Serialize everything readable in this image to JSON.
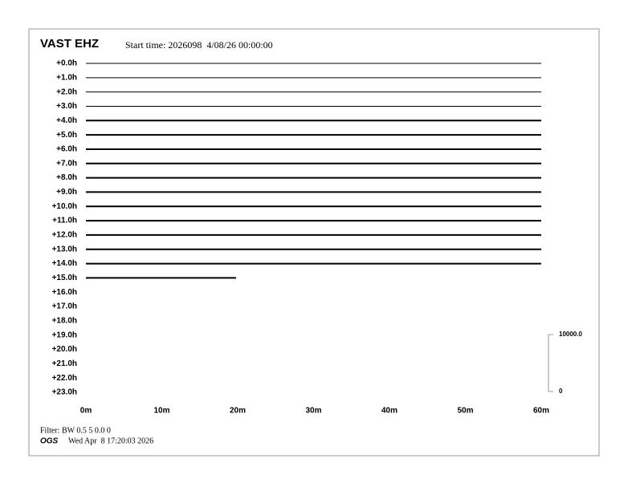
{
  "header": {
    "station": "VAST EHZ",
    "start_time": "Start time: 2026098  4/08/26 00:00:00"
  },
  "rows": [
    "+0.0h",
    "+1.0h",
    "+2.0h",
    "+3.0h",
    "+4.0h",
    "+5.0h",
    "+6.0h",
    "+7.0h",
    "+8.0h",
    "+9.0h",
    "+10.0h",
    "+11.0h",
    "+12.0h",
    "+13.0h",
    "+14.0h",
    "+15.0h",
    "+16.0h",
    "+17.0h",
    "+18.0h",
    "+19.0h",
    "+20.0h",
    "+21.0h",
    "+22.0h",
    "+23.0h"
  ],
  "x_labels": [
    "0m",
    "10m",
    "20m",
    "30m",
    "40m",
    "50m",
    "60m"
  ],
  "scale": {
    "top": "10000.0",
    "bottom": "0"
  },
  "footer": {
    "filter": "Filter: BW 0.5 5 0.0 0",
    "org": "OGS",
    "date": "Wed Apr  8 17:20:03 2026"
  }
}
